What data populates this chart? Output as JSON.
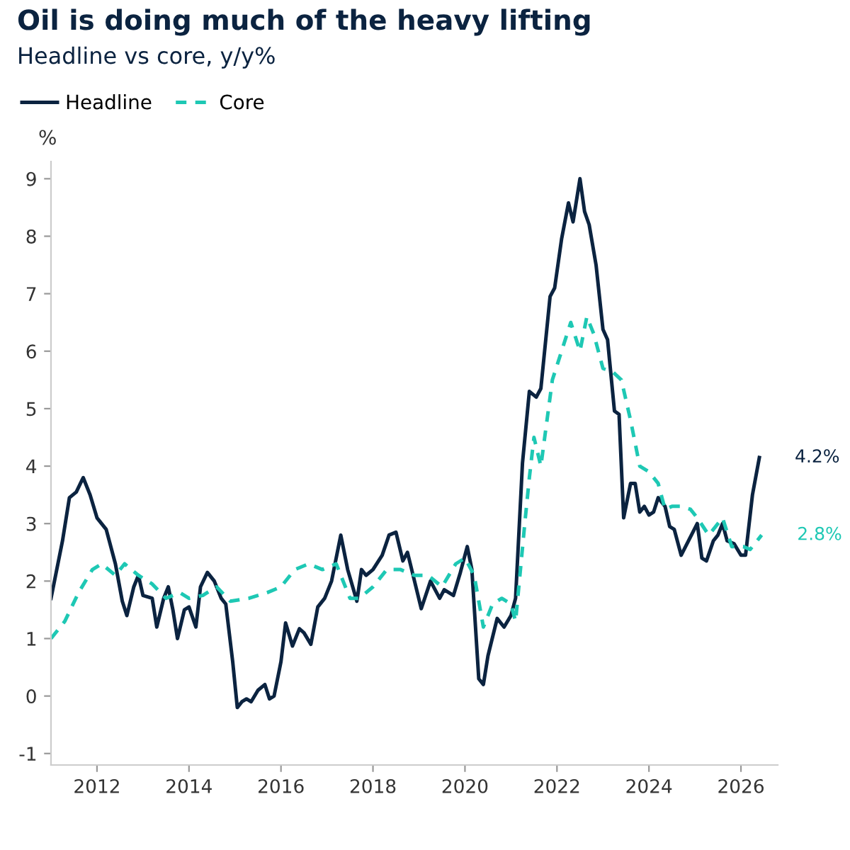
{
  "chart_data": {
    "type": "line",
    "title": "Oil is doing much of the heavy lifting",
    "subtitle": "Headline vs core, y/y%",
    "ylabel": "%",
    "xlim": [
      2011,
      2026.8
    ],
    "xticks": [
      2012,
      2014,
      2016,
      2018,
      2020,
      2022,
      2024,
      2026
    ],
    "ylim": [
      -1.2,
      9.3
    ],
    "yticks": [
      -1,
      0,
      1,
      2,
      3,
      4,
      5,
      6,
      7,
      8,
      9
    ],
    "grid": false,
    "legend": "top left",
    "series": [
      {
        "name": "Headline",
        "color": "#0b2340",
        "line_style": "solid",
        "x": [
          2011.0,
          2011.25,
          2011.4,
          2011.55,
          2011.7,
          2011.85,
          2012.0,
          2012.2,
          2012.4,
          2012.55,
          2012.65,
          2012.8,
          2012.9,
          2013.0,
          2013.2,
          2013.3,
          2013.45,
          2013.55,
          2013.65,
          2013.75,
          2013.9,
          2014.0,
          2014.15,
          2014.25,
          2014.4,
          2014.55,
          2014.7,
          2014.8,
          2014.95,
          2015.05,
          2015.15,
          2015.25,
          2015.35,
          2015.5,
          2015.65,
          2015.75,
          2015.85,
          2016.0,
          2016.1,
          2016.25,
          2016.4,
          2016.5,
          2016.65,
          2016.8,
          2016.95,
          2017.1,
          2017.3,
          2017.45,
          2017.65,
          2017.75,
          2017.85,
          2018.0,
          2018.2,
          2018.35,
          2018.5,
          2018.65,
          2018.75,
          2019.05,
          2019.25,
          2019.45,
          2019.55,
          2019.75,
          2019.9,
          2020.05,
          2020.15,
          2020.3,
          2020.4,
          2020.5,
          2020.7,
          2020.85,
          2021.0,
          2021.1,
          2021.25,
          2021.4,
          2021.55,
          2021.65,
          2021.85,
          2021.95,
          2022.1,
          2022.25,
          2022.35,
          2022.5,
          2022.6,
          2022.7,
          2022.85,
          2023.0,
          2023.1,
          2023.25,
          2023.35,
          2023.45,
          2023.6,
          2023.7,
          2023.8,
          2023.9,
          2024.0,
          2024.1,
          2024.2,
          2024.35,
          2024.45,
          2024.55,
          2024.7,
          2025.05,
          2025.15,
          2025.25,
          2025.4,
          2025.5,
          2025.6,
          2025.7,
          2025.85,
          2026.0,
          2026.1,
          2026.25,
          2026.4
        ],
        "values": [
          1.7,
          2.7,
          3.45,
          3.55,
          3.8,
          3.5,
          3.1,
          2.9,
          2.3,
          1.65,
          1.4,
          1.9,
          2.1,
          1.75,
          1.7,
          1.2,
          1.7,
          1.9,
          1.5,
          1.0,
          1.5,
          1.55,
          1.2,
          1.9,
          2.15,
          2.0,
          1.7,
          1.6,
          0.6,
          -0.2,
          -0.1,
          -0.05,
          -0.1,
          0.1,
          0.2,
          -0.05,
          0.0,
          0.6,
          1.27,
          0.87,
          1.17,
          1.1,
          0.9,
          1.55,
          1.7,
          2.0,
          2.8,
          2.2,
          1.65,
          2.2,
          2.1,
          2.2,
          2.45,
          2.8,
          2.85,
          2.35,
          2.5,
          1.52,
          2.0,
          1.7,
          1.85,
          1.75,
          2.15,
          2.6,
          2.2,
          0.3,
          0.2,
          0.7,
          1.35,
          1.2,
          1.4,
          1.7,
          4.05,
          5.3,
          5.2,
          5.35,
          6.95,
          7.1,
          7.95,
          8.58,
          8.25,
          9.0,
          8.43,
          8.2,
          7.5,
          6.38,
          6.2,
          4.96,
          4.9,
          3.1,
          3.7,
          3.7,
          3.2,
          3.3,
          3.15,
          3.2,
          3.45,
          3.3,
          2.95,
          2.9,
          2.45,
          3.0,
          2.4,
          2.35,
          2.7,
          2.8,
          3.0,
          2.7,
          2.65,
          2.45,
          2.45,
          3.5,
          4.15
        ]
      },
      {
        "name": "Core",
        "color": "#1ec8b4",
        "line_style": "dashed",
        "x": [
          2011.0,
          2011.3,
          2011.6,
          2011.9,
          2012.1,
          2012.4,
          2012.6,
          2012.9,
          2013.2,
          2013.5,
          2013.8,
          2014.0,
          2014.3,
          2014.6,
          2014.9,
          2015.3,
          2015.7,
          2016.0,
          2016.3,
          2016.6,
          2016.9,
          2017.2,
          2017.5,
          2017.7,
          2018.0,
          2018.3,
          2018.6,
          2018.9,
          2019.2,
          2019.5,
          2019.8,
          2020.0,
          2020.2,
          2020.4,
          2020.6,
          2020.8,
          2021.0,
          2021.1,
          2021.3,
          2021.4,
          2021.5,
          2021.65,
          2021.9,
          2022.1,
          2022.3,
          2022.5,
          2022.65,
          2022.8,
          2023.0,
          2023.2,
          2023.4,
          2023.6,
          2023.8,
          2024.0,
          2024.2,
          2024.35,
          2024.5,
          2024.7,
          2024.9,
          2025.05,
          2025.3,
          2025.6,
          2025.8,
          2026.05,
          2026.2,
          2026.45
        ],
        "values": [
          1.0,
          1.3,
          1.8,
          2.2,
          2.3,
          2.1,
          2.3,
          2.1,
          1.95,
          1.7,
          1.8,
          1.7,
          1.75,
          1.9,
          1.65,
          1.7,
          1.8,
          1.9,
          2.2,
          2.3,
          2.2,
          2.3,
          1.7,
          1.7,
          1.9,
          2.2,
          2.2,
          2.1,
          2.1,
          1.9,
          2.3,
          2.4,
          2.1,
          1.2,
          1.6,
          1.7,
          1.6,
          1.3,
          3.0,
          3.8,
          4.5,
          4.0,
          5.5,
          6.0,
          6.5,
          6.0,
          6.6,
          6.3,
          5.7,
          5.65,
          5.5,
          4.8,
          4.0,
          3.9,
          3.7,
          3.25,
          3.3,
          3.3,
          3.25,
          3.1,
          2.8,
          3.1,
          2.6,
          2.6,
          2.55,
          2.8
        ]
      }
    ],
    "annotations": [
      {
        "text": "4.2%",
        "x": 2026.4,
        "y": 4.15
      },
      {
        "text": "2.8%",
        "x": 2026.45,
        "y": 2.8
      }
    ]
  }
}
